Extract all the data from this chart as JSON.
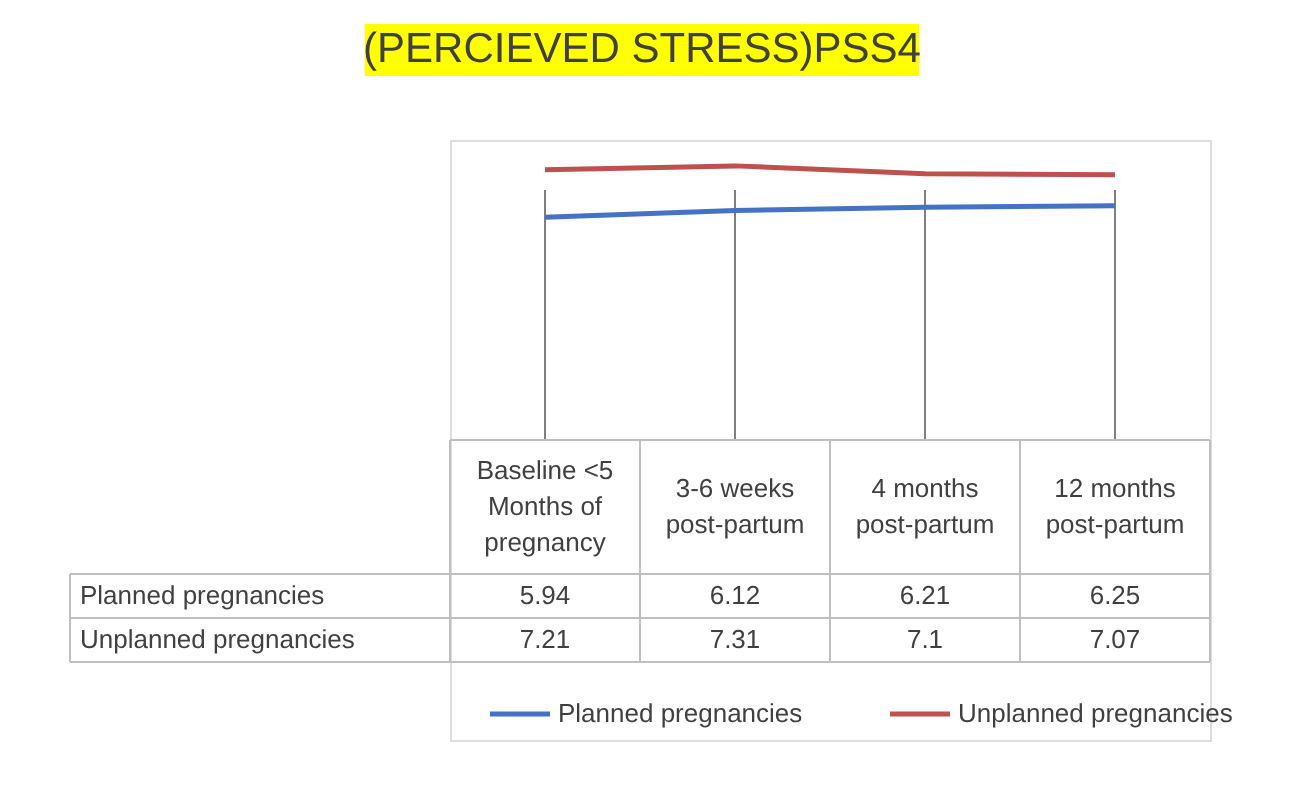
{
  "chart_data": {
    "type": "line",
    "title": "(PERCIEVED STRESS)PSS4",
    "categories": [
      "Baseline <5 Months of pregnancy",
      "3-6 weeks post-partum",
      "4 months post-partum",
      "12 months post-partum"
    ],
    "series": [
      {
        "name": "Planned pregnancies",
        "color": "#4472c4",
        "values": [
          5.94,
          6.12,
          6.21,
          6.25
        ]
      },
      {
        "name": "Unplanned pregnancies",
        "color": "#c0504d",
        "values": [
          7.21,
          7.31,
          7.1,
          7.07
        ]
      }
    ],
    "data_labels": true,
    "legend": "bottom",
    "grid": "x",
    "marker": "none",
    "line_style": "solid"
  }
}
